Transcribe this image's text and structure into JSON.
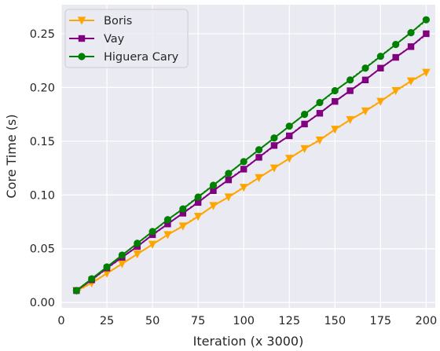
{
  "chart_data": {
    "type": "line",
    "title": "",
    "xlabel": "Iteration (x 3000)",
    "ylabel": "Core Time (s)",
    "xlim": [
      0,
      205
    ],
    "ylim": [
      -0.005,
      0.277
    ],
    "xticks": [
      0,
      25,
      50,
      75,
      100,
      125,
      150,
      175,
      200
    ],
    "yticks": [
      0.0,
      0.05,
      0.1,
      0.15,
      0.2,
      0.25
    ],
    "xtick_labels": [
      "0",
      "25",
      "50",
      "75",
      "100",
      "125",
      "150",
      "175",
      "200"
    ],
    "ytick_labels": [
      "0.00",
      "0.05",
      "0.10",
      "0.15",
      "0.20",
      "0.25"
    ],
    "grid": true,
    "background": "#eaeaf2",
    "legend_position": "top-left",
    "x": [
      8.33,
      16.67,
      25,
      33.33,
      41.67,
      50,
      58.33,
      66.67,
      75,
      83.33,
      91.67,
      100,
      108.33,
      116.67,
      125,
      133.33,
      141.67,
      150,
      158.33,
      166.67,
      175,
      183.33,
      191.67,
      200
    ],
    "series": [
      {
        "name": "Boris",
        "color": "#ffa500",
        "marker": "triangle-down",
        "values": [
          0.011,
          0.018,
          0.027,
          0.036,
          0.045,
          0.054,
          0.063,
          0.071,
          0.08,
          0.09,
          0.098,
          0.107,
          0.116,
          0.125,
          0.134,
          0.143,
          0.151,
          0.161,
          0.17,
          0.178,
          0.187,
          0.197,
          0.206,
          0.214
        ]
      },
      {
        "name": "Vay",
        "color": "#800080",
        "marker": "square",
        "values": [
          0.011,
          0.021,
          0.032,
          0.042,
          0.052,
          0.063,
          0.073,
          0.083,
          0.093,
          0.104,
          0.114,
          0.124,
          0.135,
          0.146,
          0.155,
          0.166,
          0.176,
          0.187,
          0.197,
          0.207,
          0.218,
          0.228,
          0.238,
          0.25
        ]
      },
      {
        "name": "Higuera Cary",
        "color": "#008000",
        "marker": "circle",
        "values": [
          0.011,
          0.022,
          0.033,
          0.044,
          0.055,
          0.066,
          0.077,
          0.087,
          0.098,
          0.109,
          0.12,
          0.131,
          0.142,
          0.153,
          0.164,
          0.175,
          0.186,
          0.197,
          0.207,
          0.218,
          0.229,
          0.24,
          0.251,
          0.263
        ]
      }
    ]
  }
}
